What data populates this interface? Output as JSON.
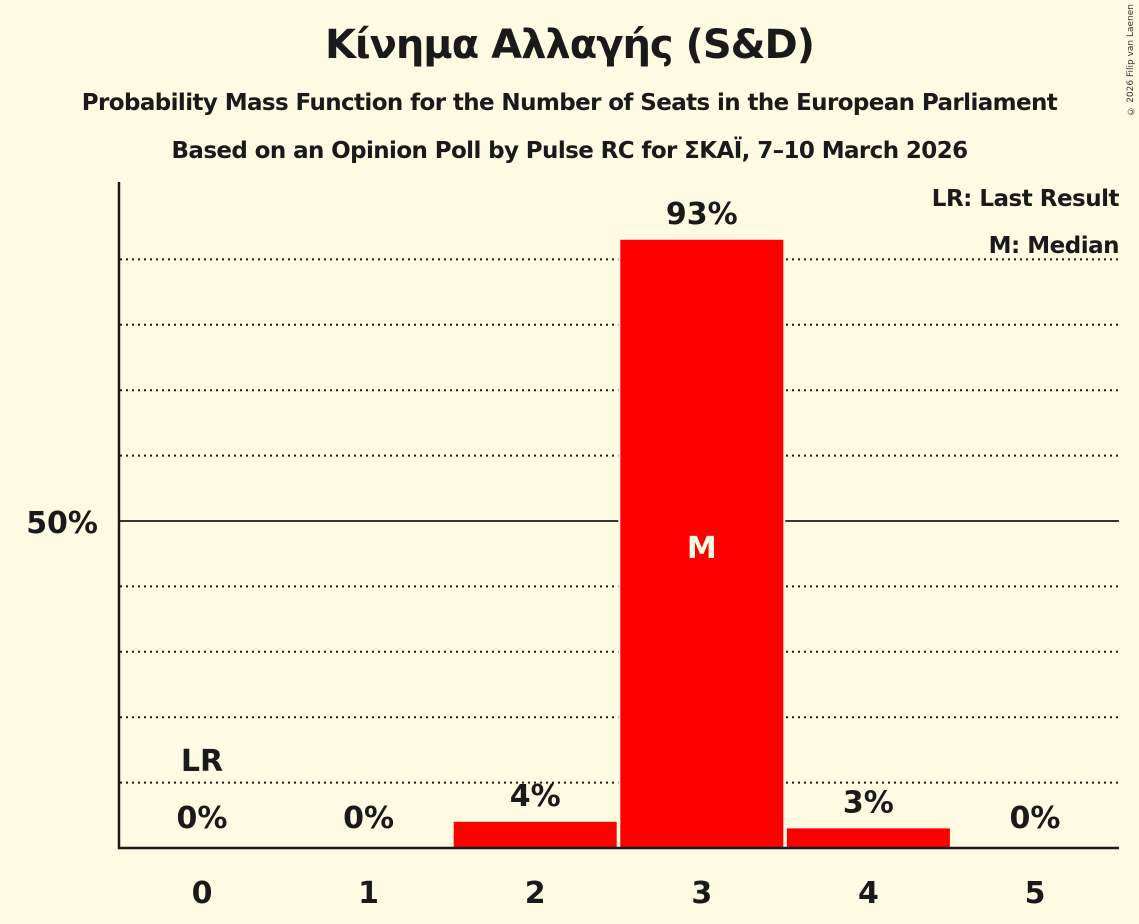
{
  "header": {
    "title": "Κίνημα Αλλαγής (S&D)",
    "subtitle": "Probability Mass Function for the Number of Seats in the European Parliament",
    "source": "Based on an Opinion Poll by Pulse RC for ΣΚΑΪ, 7–10 March 2026"
  },
  "copyright": "© 2026 Filip van Laenen",
  "legend": {
    "lr": "LR: Last Result",
    "m": "M: Median"
  },
  "colors": {
    "background": "#fffae2",
    "bar": "#ff0000",
    "axis": "#1a1a1a",
    "median_label": "#fffae2"
  },
  "axis": {
    "y_tick_label": "50%"
  },
  "chart_data": {
    "type": "bar",
    "title": "Κίνημα Αλλαγής (S&D)",
    "subtitle": "Probability Mass Function for the Number of Seats in the European Parliament",
    "xlabel": "",
    "ylabel": "",
    "categories": [
      "0",
      "1",
      "2",
      "3",
      "4",
      "5"
    ],
    "values": [
      0,
      0,
      4,
      93,
      3,
      0
    ],
    "value_labels": [
      "0%",
      "0%",
      "4%",
      "93%",
      "3%",
      "0%"
    ],
    "ylim": [
      0,
      100
    ],
    "y_ticks_labeled": [
      "50%"
    ],
    "grid": "dotted every 10%, solid at 50%",
    "annotations": [
      {
        "category": "0",
        "label": "LR",
        "meaning": "Last Result"
      },
      {
        "category": "3",
        "label": "M",
        "meaning": "Median"
      }
    ],
    "legend_position": "top-right"
  }
}
